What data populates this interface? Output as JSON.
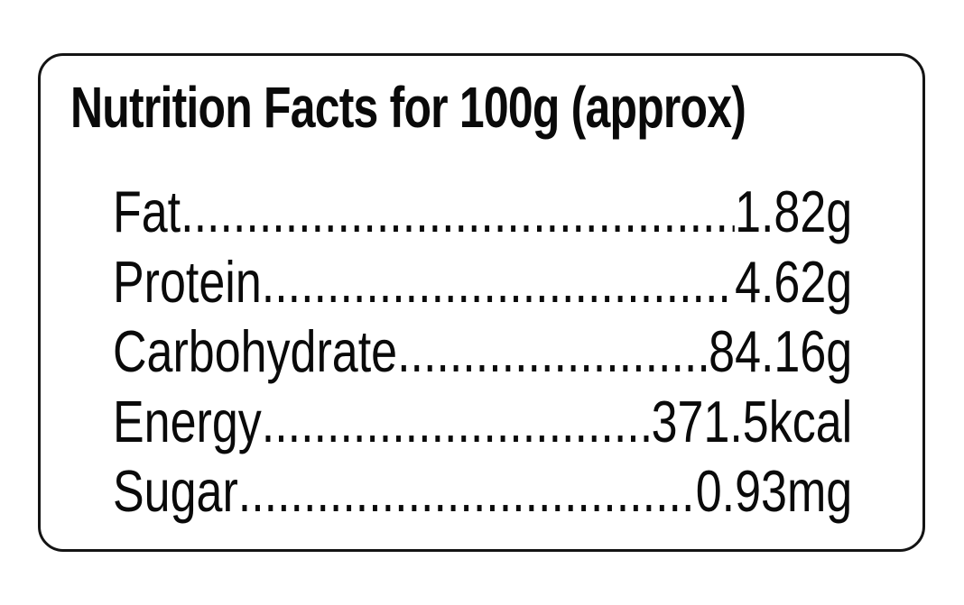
{
  "label": {
    "title": "Nutrition Facts for 100g (approx)",
    "serving_basis": "100g (approx)",
    "text_color": "#0a0a0a",
    "border_color": "#141414",
    "background_color": "#ffffff",
    "rows": [
      {
        "name": "Fat",
        "value": "1.82g"
      },
      {
        "name": "Protein",
        "value": "4.62g"
      },
      {
        "name": "Carbohydrate",
        "value": "84.16g"
      },
      {
        "name": "Energy",
        "value": "371.5kcal"
      },
      {
        "name": "Sugar",
        "value": "0.93mg"
      }
    ]
  }
}
